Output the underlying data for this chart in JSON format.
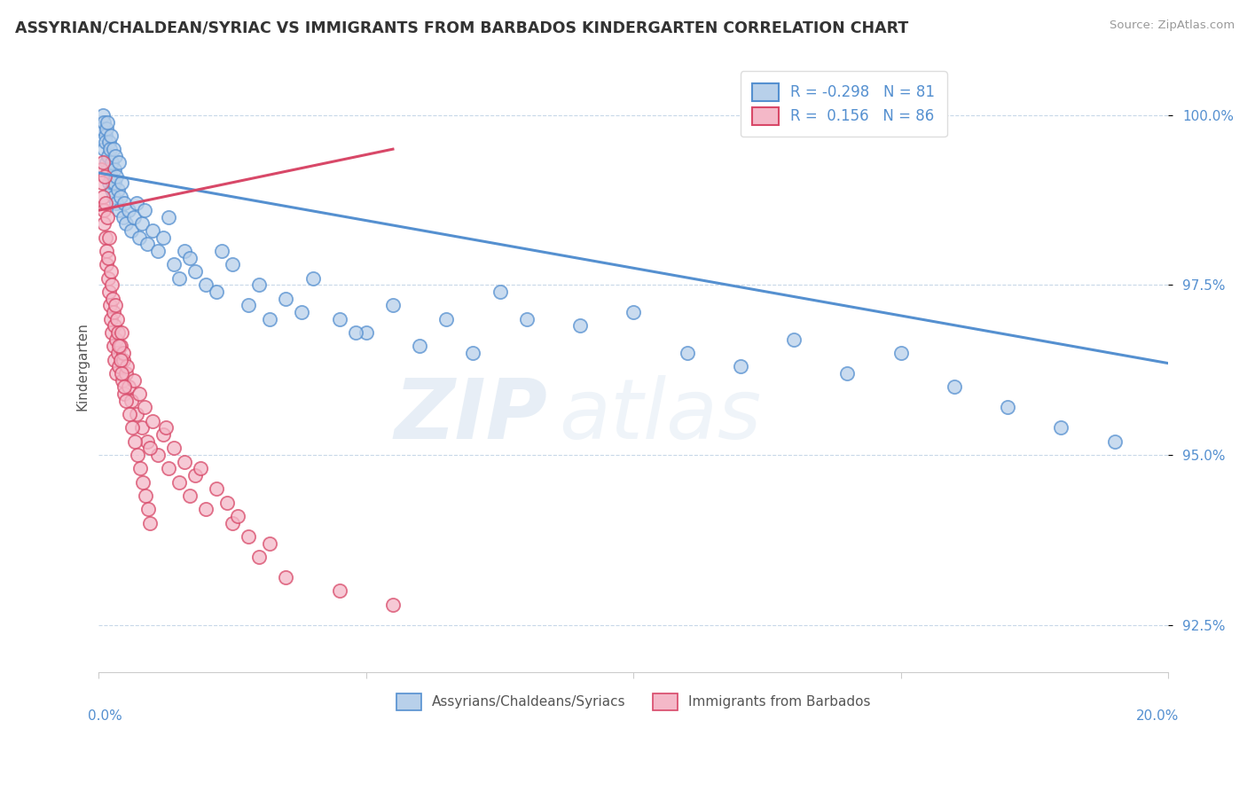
{
  "title": "ASSYRIAN/CHALDEAN/SYRIAC VS IMMIGRANTS FROM BARBADOS KINDERGARTEN CORRELATION CHART",
  "source": "Source: ZipAtlas.com",
  "ylabel": "Kindergarten",
  "xmin": 0.0,
  "xmax": 20.0,
  "ymin": 91.8,
  "ymax": 100.8,
  "yticks": [
    92.5,
    95.0,
    97.5,
    100.0
  ],
  "ytick_labels": [
    "92.5%",
    "95.0%",
    "97.5%",
    "100.0%"
  ],
  "blue_R": -0.298,
  "blue_N": 81,
  "pink_R": 0.156,
  "pink_N": 86,
  "blue_color": "#b8d0ea",
  "pink_color": "#f4b8c8",
  "blue_line_color": "#5590d0",
  "pink_line_color": "#d84868",
  "legend_label_blue": "Assyrians/Chaldeans/Syriacs",
  "legend_label_pink": "Immigrants from Barbados",
  "watermark_zip": "ZIP",
  "watermark_atlas": "atlas",
  "background_color": "#ffffff",
  "grid_color": "#c8d8e8",
  "blue_trend_x0": 0.0,
  "blue_trend_y0": 99.15,
  "blue_trend_x1": 20.0,
  "blue_trend_y1": 96.35,
  "pink_trend_x0": 0.0,
  "pink_trend_y0": 98.6,
  "pink_trend_x1": 5.5,
  "pink_trend_y1": 99.5,
  "blue_x": [
    0.05,
    0.07,
    0.09,
    0.1,
    0.12,
    0.13,
    0.14,
    0.15,
    0.16,
    0.17,
    0.18,
    0.19,
    0.2,
    0.21,
    0.22,
    0.23,
    0.24,
    0.25,
    0.26,
    0.27,
    0.28,
    0.29,
    0.3,
    0.31,
    0.32,
    0.33,
    0.35,
    0.37,
    0.38,
    0.4,
    0.42,
    0.45,
    0.48,
    0.5,
    0.55,
    0.6,
    0.65,
    0.7,
    0.75,
    0.8,
    0.85,
    0.9,
    1.0,
    1.1,
    1.2,
    1.3,
    1.4,
    1.5,
    1.6,
    1.7,
    1.8,
    2.0,
    2.2,
    2.5,
    2.8,
    3.0,
    3.2,
    3.5,
    3.8,
    4.0,
    4.5,
    5.0,
    5.5,
    6.0,
    6.5,
    7.0,
    7.5,
    8.0,
    9.0,
    10.0,
    11.0,
    12.0,
    13.0,
    14.0,
    15.0,
    16.0,
    17.0,
    18.0,
    19.0,
    4.8,
    2.3
  ],
  "blue_y": [
    99.8,
    100.0,
    99.9,
    99.5,
    99.7,
    99.6,
    99.8,
    99.3,
    99.9,
    99.4,
    99.2,
    99.6,
    99.0,
    99.5,
    99.1,
    99.7,
    98.9,
    99.3,
    99.0,
    99.5,
    98.8,
    99.2,
    99.0,
    99.4,
    98.7,
    99.1,
    98.9,
    99.3,
    98.6,
    98.8,
    99.0,
    98.5,
    98.7,
    98.4,
    98.6,
    98.3,
    98.5,
    98.7,
    98.2,
    98.4,
    98.6,
    98.1,
    98.3,
    98.0,
    98.2,
    98.5,
    97.8,
    97.6,
    98.0,
    97.9,
    97.7,
    97.5,
    97.4,
    97.8,
    97.2,
    97.5,
    97.0,
    97.3,
    97.1,
    97.6,
    97.0,
    96.8,
    97.2,
    96.6,
    97.0,
    96.5,
    97.4,
    97.0,
    96.9,
    97.1,
    96.5,
    96.3,
    96.7,
    96.2,
    96.5,
    96.0,
    95.7,
    95.4,
    95.2,
    96.8,
    98.0
  ],
  "pink_x": [
    0.04,
    0.06,
    0.07,
    0.08,
    0.09,
    0.1,
    0.11,
    0.12,
    0.13,
    0.14,
    0.15,
    0.16,
    0.17,
    0.18,
    0.19,
    0.2,
    0.21,
    0.22,
    0.23,
    0.24,
    0.25,
    0.26,
    0.27,
    0.28,
    0.29,
    0.3,
    0.31,
    0.32,
    0.33,
    0.34,
    0.35,
    0.36,
    0.38,
    0.4,
    0.42,
    0.44,
    0.46,
    0.48,
    0.5,
    0.55,
    0.6,
    0.65,
    0.7,
    0.75,
    0.8,
    0.85,
    0.9,
    1.0,
    1.1,
    1.2,
    1.3,
    1.4,
    1.5,
    1.6,
    1.7,
    1.8,
    2.0,
    2.2,
    2.5,
    2.8,
    3.0,
    0.45,
    0.52,
    1.25,
    0.95,
    3.5,
    4.5,
    5.5,
    0.37,
    0.41,
    0.43,
    0.47,
    0.51,
    0.57,
    0.62,
    0.68,
    0.72,
    0.78,
    0.82,
    0.88,
    0.92,
    0.96,
    2.4,
    3.2,
    1.9,
    2.6
  ],
  "pink_y": [
    99.2,
    99.0,
    98.8,
    99.3,
    98.6,
    98.4,
    99.1,
    98.2,
    98.7,
    98.0,
    97.8,
    98.5,
    97.6,
    97.9,
    98.2,
    97.4,
    97.2,
    97.7,
    97.0,
    97.5,
    96.8,
    97.3,
    96.6,
    97.1,
    96.4,
    96.9,
    97.2,
    96.2,
    96.7,
    97.0,
    96.5,
    96.8,
    96.3,
    96.6,
    96.8,
    96.1,
    96.4,
    95.9,
    96.2,
    96.0,
    95.8,
    96.1,
    95.6,
    95.9,
    95.4,
    95.7,
    95.2,
    95.5,
    95.0,
    95.3,
    94.8,
    95.1,
    94.6,
    94.9,
    94.4,
    94.7,
    94.2,
    94.5,
    94.0,
    93.8,
    93.5,
    96.5,
    96.3,
    95.4,
    95.1,
    93.2,
    93.0,
    92.8,
    96.6,
    96.4,
    96.2,
    96.0,
    95.8,
    95.6,
    95.4,
    95.2,
    95.0,
    94.8,
    94.6,
    94.4,
    94.2,
    94.0,
    94.3,
    93.7,
    94.8,
    94.1
  ]
}
